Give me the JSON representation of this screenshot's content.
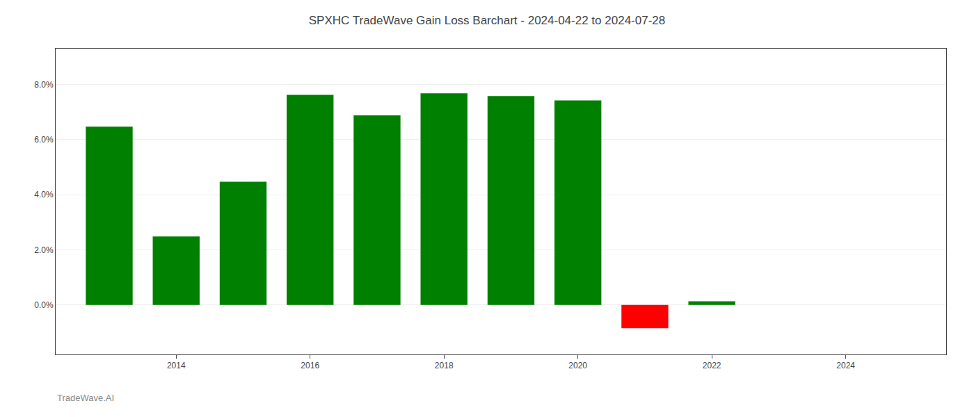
{
  "chart_data": {
    "type": "bar",
    "title": "SPXHC TradeWave Gain Loss Barchart - 2024-04-22 to 2024-07-28",
    "annotations": [
      "TradeWave.AI"
    ],
    "x": [
      2013,
      2014,
      2015,
      2016,
      2017,
      2018,
      2019,
      2020,
      2021,
      2022,
      2023
    ],
    "values": [
      0.0647,
      0.0248,
      0.0447,
      0.0762,
      0.0688,
      0.0768,
      0.0758,
      0.0742,
      -0.0085,
      0.0013,
      0.0
    ],
    "colors": [
      "#008000",
      "#008000",
      "#008000",
      "#008000",
      "#008000",
      "#008000",
      "#008000",
      "#008000",
      "#ff0000",
      "#008000",
      "#008000"
    ],
    "xlim": [
      2012.2,
      2025.5
    ],
    "xticks": [
      2014,
      2016,
      2018,
      2020,
      2022,
      2024
    ],
    "ylim": [
      -0.018,
      0.093
    ],
    "yticks": [
      {
        "value": 0.0,
        "label": "0.0%"
      },
      {
        "value": 0.02,
        "label": "2.0%"
      },
      {
        "value": 0.04,
        "label": "4.0%"
      },
      {
        "value": 0.06,
        "label": "6.0%"
      },
      {
        "value": 0.08,
        "label": "8.0%"
      }
    ],
    "grid": true
  }
}
